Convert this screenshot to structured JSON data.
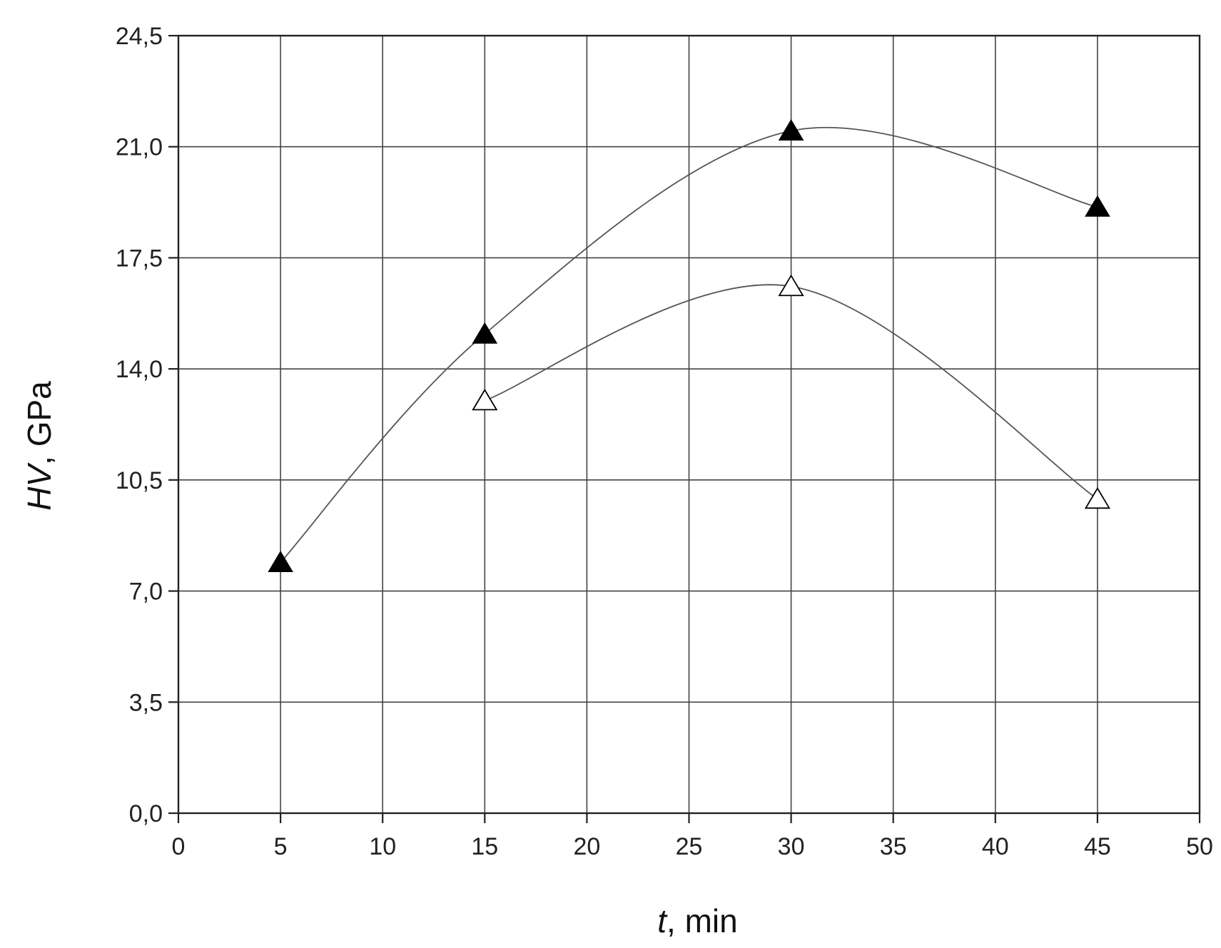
{
  "chart_data": {
    "type": "scatter",
    "xlabel_var": "t",
    "xlabel_unit": ", min",
    "ylabel_var": "HV",
    "ylabel_unit": ", GPa",
    "xlim": [
      0,
      50
    ],
    "ylim": [
      0,
      24.5
    ],
    "xticks": [
      0,
      5,
      10,
      15,
      20,
      25,
      30,
      35,
      40,
      45,
      50
    ],
    "xtick_labels": [
      "0",
      "5",
      "10",
      "15",
      "20",
      "25",
      "30",
      "35",
      "40",
      "45",
      "50"
    ],
    "yticks": [
      0,
      3.5,
      7,
      10.5,
      14,
      17.5,
      21,
      24.5
    ],
    "ytick_labels": [
      "0,0",
      "3,5",
      "7,0",
      "10,5",
      "14,0",
      "17,5",
      "21,0",
      "24,5"
    ],
    "grid": true,
    "series": [
      {
        "marker": "filled-triangle",
        "color": "#000000",
        "x": [
          5,
          15,
          30,
          45
        ],
        "y": [
          7.9,
          15.1,
          21.5,
          19.1
        ]
      },
      {
        "marker": "open-triangle",
        "color": "#000000",
        "x": [
          15,
          30,
          45
        ],
        "y": [
          13.0,
          16.6,
          9.9
        ]
      }
    ]
  }
}
